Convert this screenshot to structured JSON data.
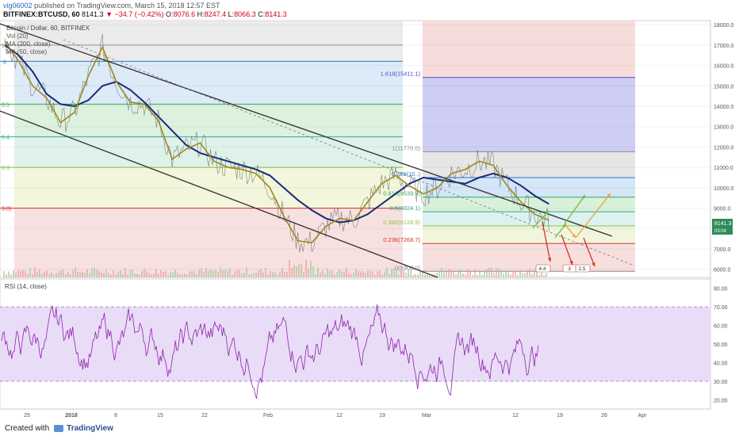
{
  "header": {
    "author": "vig06002",
    "published": "published on TradingView.com, March 15, 2018 12:57 EST",
    "symbol": "BITFINEX:BTCUSD, 60",
    "last": "8141.3",
    "change": "▼ −34.7 (−0.42%)",
    "o_label": "O:",
    "o_value": "8076.6",
    "h_label": "H:",
    "h_value": "8247.4",
    "l_label": "L:",
    "l_value": "8066.3",
    "c_label": "C:",
    "c_value": "8141.3"
  },
  "legend": {
    "title": "Bitcoin / Dollar, 60, BITFINEX",
    "vol": "Vol (20)",
    "ma200": "MA (200, close)",
    "ma50": "MA (50, close)"
  },
  "rsi_legend": "RSI (14, close)",
  "price_badge": {
    "value": "8141.3",
    "sub": "03:04"
  },
  "colors": {
    "ma50": "#a0891c",
    "ma200": "#1c2a7a",
    "channel": "#3a3a3a",
    "rsi": "#8e24aa",
    "rsi_band": "#e9dcf7",
    "up_arrow": "#6dbd3f",
    "down_arrow": "#d93025",
    "orange_arrow": "#f0a030"
  },
  "fib_left_labels": [
    "1)",
    ".6",
    "0.5",
    "0.4",
    "0.3",
    "3.0)"
  ],
  "fib_right": [
    {
      "label": "1.618(15411.1)",
      "price": 15411.1,
      "color": "#4b4fc8",
      "fill": "#c9c9f3"
    },
    {
      "label": "1(11770.0)",
      "price": 11770.0,
      "color": "#8a8a8a",
      "fill": "#e3e3e3"
    },
    {
      "label": "0.786(10..)",
      "price": 10500,
      "color": "#2b77c9",
      "fill": "#cfe3f7"
    },
    {
      "label": "0.618(9539.9)",
      "price": 9539.9,
      "color": "#35a35a",
      "fill": "#d5efd7"
    },
    {
      "label": "0.5(8824.1)",
      "price": 8824.1,
      "color": "#3aa9a0",
      "fill": "#d7f1ec"
    },
    {
      "label": "0.382(8128.9)",
      "price": 8128.9,
      "color": "#8bc34a",
      "fill": "#eef5d9"
    },
    {
      "label": "0.236(7268.7)",
      "price": 7268.7,
      "color": "#d93025",
      "fill": "#f6dcda"
    },
    {
      "label": "0(5900.0)",
      "price": 5900.0,
      "color": "#8a8a8a",
      "fill": "#f6dcda"
    }
  ],
  "projections": [
    "4.4",
    "3",
    "2.5"
  ],
  "chart_data": {
    "type": "line",
    "price_axis": {
      "min": 5600,
      "max": 18200,
      "ticks": [
        18000,
        17000,
        16000,
        15000,
        14000,
        13000,
        12000,
        11000,
        10000,
        9000,
        8000,
        7000,
        6000
      ]
    },
    "rsi_axis": {
      "min": 15,
      "max": 85,
      "ticks": [
        80,
        70,
        60,
        50,
        40,
        30,
        20
      ],
      "overbought": 70,
      "oversold": 30
    },
    "x_ticks": [
      "25",
      "2018",
      "8",
      "15",
      "22",
      "Feb",
      "12",
      "19",
      "Mar",
      "12",
      "19",
      "26",
      "Apr"
    ],
    "ma50": [
      [
        0,
        17200
      ],
      [
        1,
        16200
      ],
      [
        2,
        15000
      ],
      [
        3,
        14400
      ],
      [
        4,
        13200
      ],
      [
        5,
        13700
      ],
      [
        6,
        15500
      ],
      [
        7,
        16900
      ],
      [
        8,
        15200
      ],
      [
        9,
        14200
      ],
      [
        10,
        14100
      ],
      [
        11,
        13300
      ],
      [
        12,
        11400
      ],
      [
        13,
        11900
      ],
      [
        14,
        12200
      ],
      [
        15,
        11300
      ],
      [
        16,
        11000
      ],
      [
        17,
        10900
      ],
      [
        18,
        10700
      ],
      [
        19,
        10000
      ],
      [
        20,
        8600
      ],
      [
        21,
        7400
      ],
      [
        22,
        7300
      ],
      [
        23,
        8100
      ],
      [
        24,
        8500
      ],
      [
        25,
        8400
      ],
      [
        26,
        9300
      ],
      [
        27,
        10200
      ],
      [
        28,
        10600
      ],
      [
        29,
        10100
      ],
      [
        30,
        9700
      ],
      [
        31,
        10000
      ],
      [
        32,
        10700
      ],
      [
        33,
        10900
      ],
      [
        34,
        11300
      ],
      [
        35,
        11100
      ],
      [
        36,
        10100
      ],
      [
        37,
        9300
      ],
      [
        38,
        8700
      ],
      [
        39,
        8400
      ]
    ],
    "ma200": [
      [
        0,
        17000
      ],
      [
        1,
        16500
      ],
      [
        2,
        15700
      ],
      [
        3,
        14600
      ],
      [
        4,
        14100
      ],
      [
        5,
        14000
      ],
      [
        6,
        14300
      ],
      [
        7,
        15000
      ],
      [
        8,
        15200
      ],
      [
        9,
        14800
      ],
      [
        10,
        14200
      ],
      [
        11,
        13500
      ],
      [
        12,
        12800
      ],
      [
        13,
        12100
      ],
      [
        14,
        11700
      ],
      [
        15,
        11500
      ],
      [
        16,
        11300
      ],
      [
        17,
        11100
      ],
      [
        18,
        10900
      ],
      [
        19,
        10600
      ],
      [
        20,
        10000
      ],
      [
        21,
        9400
      ],
      [
        22,
        8900
      ],
      [
        23,
        8500
      ],
      [
        24,
        8300
      ],
      [
        25,
        8400
      ],
      [
        26,
        8700
      ],
      [
        27,
        9200
      ],
      [
        28,
        9700
      ],
      [
        29,
        10200
      ],
      [
        30,
        10500
      ],
      [
        31,
        10400
      ],
      [
        32,
        10300
      ],
      [
        33,
        10200
      ],
      [
        34,
        10500
      ],
      [
        35,
        10700
      ],
      [
        36,
        10500
      ],
      [
        37,
        10100
      ],
      [
        38,
        9600
      ],
      [
        39,
        9200
      ]
    ]
  }
}
